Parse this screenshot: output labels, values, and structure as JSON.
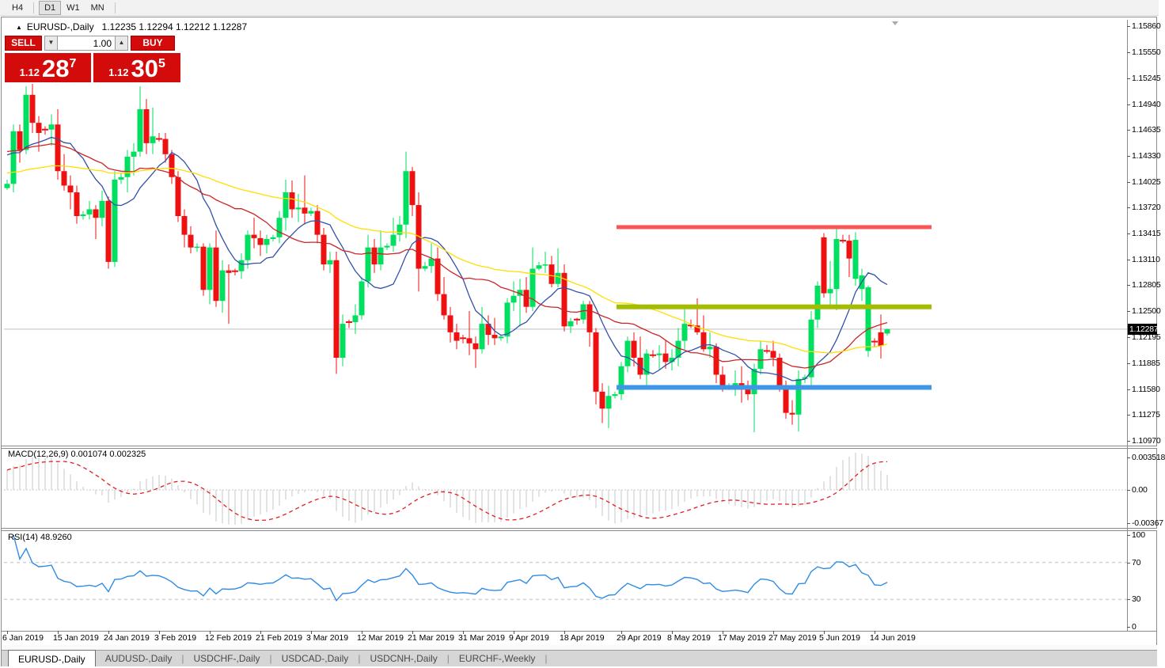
{
  "toolbar": {
    "timeframes": [
      {
        "label": "H4",
        "active": false
      },
      {
        "label": "D1",
        "active": true
      },
      {
        "label": "W1",
        "active": false
      },
      {
        "label": "MN",
        "active": false
      }
    ]
  },
  "chart_window": {
    "title_symbol": "EURUSD-,Daily",
    "title_ohlc": "1.12235 1.12294 1.12212 1.12287"
  },
  "trade_panel": {
    "sell_label": "SELL",
    "buy_label": "BUY",
    "volume": "1.00",
    "sell_price_small": "1.12",
    "sell_price_big": "28",
    "sell_price_sup": "7",
    "buy_price_small": "1.12",
    "buy_price_big": "30",
    "buy_price_sup": "5"
  },
  "chart_data": {
    "type": "candlestick",
    "symbol": "EURUSD-",
    "timeframe": "Daily",
    "price_axis": {
      "ticks": [
        "1.15860",
        "1.15550",
        "1.15245",
        "1.14940",
        "1.14635",
        "1.14330",
        "1.14025",
        "1.13720",
        "1.13415",
        "1.13110",
        "1.12805",
        "1.12500",
        "1.12195",
        "1.11885",
        "1.11580",
        "1.11275",
        "1.10970"
      ],
      "current_price": "1.12287"
    },
    "x_labels": [
      {
        "text": "6 Jan 2019",
        "index": 0
      },
      {
        "text": "15 Jan 2019",
        "index": 8
      },
      {
        "text": "24 Jan 2019",
        "index": 16
      },
      {
        "text": "3 Feb 2019",
        "index": 24
      },
      {
        "text": "12 Feb 2019",
        "index": 32
      },
      {
        "text": "21 Feb 2019",
        "index": 40
      },
      {
        "text": "3 Mar 2019",
        "index": 48
      },
      {
        "text": "12 Mar 2019",
        "index": 56
      },
      {
        "text": "21 Mar 2019",
        "index": 64
      },
      {
        "text": "31 Mar 2019",
        "index": 72
      },
      {
        "text": "9 Apr 2019",
        "index": 80
      },
      {
        "text": "18 Apr 2019",
        "index": 88
      },
      {
        "text": "29 Apr 2019",
        "index": 97
      },
      {
        "text": "8 May 2019",
        "index": 105
      },
      {
        "text": "17 May 2019",
        "index": 113
      },
      {
        "text": "27 May 2019",
        "index": 121
      },
      {
        "text": "5 Jun 2019",
        "index": 129
      },
      {
        "text": "14 Jun 2019",
        "index": 137
      }
    ],
    "candles": [
      [
        1.1395,
        1.1405,
        1.1393,
        1.14
      ],
      [
        1.14,
        1.147,
        1.139,
        1.1462
      ],
      [
        1.1462,
        1.147,
        1.1425,
        1.144
      ],
      [
        1.144,
        1.1515,
        1.1435,
        1.1505
      ],
      [
        1.1505,
        1.1518,
        1.146,
        1.1472
      ],
      [
        1.1472,
        1.148,
        1.1438,
        1.146
      ],
      [
        1.1462,
        1.1468,
        1.1458,
        1.1464,
        1
      ],
      [
        1.1464,
        1.1482,
        1.1445,
        1.147
      ],
      [
        1.147,
        1.1488,
        1.1405,
        1.1415
      ],
      [
        1.1415,
        1.1435,
        1.1392,
        1.1398
      ],
      [
        1.1398,
        1.141,
        1.137,
        1.139
      ],
      [
        1.139,
        1.1398,
        1.1353,
        1.1362
      ],
      [
        1.1362,
        1.1368,
        1.1358,
        1.1364
      ],
      [
        1.1364,
        1.138,
        1.1358,
        1.137
      ],
      [
        1.137,
        1.1375,
        1.1335,
        1.136
      ],
      [
        1.136,
        1.1392,
        1.135,
        1.138
      ],
      [
        1.138,
        1.1385,
        1.13,
        1.1308
      ],
      [
        1.1308,
        1.1415,
        1.1302,
        1.1405
      ],
      [
        1.1405,
        1.1412,
        1.14,
        1.1408
      ],
      [
        1.1408,
        1.144,
        1.139,
        1.1432
      ],
      [
        1.1432,
        1.1448,
        1.141,
        1.1438
      ],
      [
        1.1438,
        1.1515,
        1.1432,
        1.1488
      ],
      [
        1.1488,
        1.15,
        1.1435,
        1.1448
      ],
      [
        1.1448,
        1.149,
        1.1435,
        1.1456
      ],
      [
        1.1456,
        1.146,
        1.145,
        1.1453,
        1
      ],
      [
        1.1453,
        1.146,
        1.1425,
        1.1435
      ],
      [
        1.1435,
        1.144,
        1.14,
        1.1408
      ],
      [
        1.1408,
        1.1415,
        1.1355,
        1.1362
      ],
      [
        1.1362,
        1.137,
        1.1325,
        1.134
      ],
      [
        1.134,
        1.135,
        1.1318,
        1.1325
      ],
      [
        1.1325,
        1.133,
        1.132,
        1.1326
      ],
      [
        1.1326,
        1.133,
        1.1268,
        1.1275
      ],
      [
        1.1275,
        1.133,
        1.1258,
        1.1325
      ],
      [
        1.1325,
        1.1345,
        1.1255,
        1.1262
      ],
      [
        1.1262,
        1.131,
        1.1248,
        1.1298
      ],
      [
        1.1298,
        1.1305,
        1.1235,
        1.1295
      ],
      [
        1.1295,
        1.13,
        1.1292,
        1.1297,
        1
      ],
      [
        1.1297,
        1.1318,
        1.1288,
        1.131
      ],
      [
        1.131,
        1.1345,
        1.13,
        1.134
      ],
      [
        1.134,
        1.136,
        1.1324,
        1.1336
      ],
      [
        1.1336,
        1.1345,
        1.1315,
        1.1328
      ],
      [
        1.1328,
        1.134,
        1.1318,
        1.1335
      ],
      [
        1.1335,
        1.134,
        1.1332,
        1.1337
      ],
      [
        1.1337,
        1.1368,
        1.133,
        1.136
      ],
      [
        1.136,
        1.1405,
        1.1345,
        1.139
      ],
      [
        1.139,
        1.1404,
        1.136,
        1.137
      ],
      [
        1.137,
        1.1388,
        1.1355,
        1.1372
      ],
      [
        1.1372,
        1.141,
        1.1352,
        1.1365
      ],
      [
        1.1365,
        1.1372,
        1.1362,
        1.1368
      ],
      [
        1.1368,
        1.1375,
        1.133,
        1.134
      ],
      [
        1.134,
        1.1348,
        1.1298,
        1.1305
      ],
      [
        1.1305,
        1.132,
        1.1295,
        1.131
      ],
      [
        1.131,
        1.132,
        1.1176,
        1.1195
      ],
      [
        1.1195,
        1.1246,
        1.1185,
        1.1235
      ],
      [
        1.1235,
        1.124,
        1.123,
        1.1237,
        1
      ],
      [
        1.1237,
        1.1258,
        1.1223,
        1.1245
      ],
      [
        1.1245,
        1.129,
        1.124,
        1.1285
      ],
      [
        1.1285,
        1.134,
        1.1278,
        1.1325
      ],
      [
        1.1325,
        1.1335,
        1.1295,
        1.1305
      ],
      [
        1.1305,
        1.1345,
        1.1298,
        1.1325
      ],
      [
        1.1325,
        1.133,
        1.1322,
        1.1327
      ],
      [
        1.1327,
        1.136,
        1.132,
        1.134
      ],
      [
        1.134,
        1.1362,
        1.1332,
        1.1352
      ],
      [
        1.1352,
        1.1438,
        1.1336,
        1.1415
      ],
      [
        1.1415,
        1.142,
        1.1362,
        1.1375
      ],
      [
        1.1375,
        1.139,
        1.1273,
        1.13
      ],
      [
        1.13,
        1.1308,
        1.1297,
        1.1303
      ],
      [
        1.1303,
        1.133,
        1.1295,
        1.1312
      ],
      [
        1.1312,
        1.1325,
        1.1262,
        1.127
      ],
      [
        1.127,
        1.129,
        1.124,
        1.1245
      ],
      [
        1.1245,
        1.1255,
        1.1213,
        1.1225
      ],
      [
        1.1225,
        1.1235,
        1.1205,
        1.1215
      ],
      [
        1.1215,
        1.1222,
        1.1212,
        1.1218,
        1
      ],
      [
        1.1218,
        1.125,
        1.1198,
        1.1212
      ],
      [
        1.1212,
        1.122,
        1.1183,
        1.1205
      ],
      [
        1.1205,
        1.1255,
        1.12,
        1.1235
      ],
      [
        1.1235,
        1.1245,
        1.121,
        1.1222
      ],
      [
        1.1222,
        1.1242,
        1.121,
        1.1218
      ],
      [
        1.1218,
        1.1222,
        1.1215,
        1.122
      ],
      [
        1.122,
        1.1265,
        1.1212,
        1.126
      ],
      [
        1.126,
        1.1285,
        1.125,
        1.1268
      ],
      [
        1.1268,
        1.1288,
        1.1232,
        1.1275
      ],
      [
        1.1275,
        1.129,
        1.1248,
        1.1255
      ],
      [
        1.1255,
        1.1325,
        1.125,
        1.13
      ],
      [
        1.13,
        1.1308,
        1.1298,
        1.1304
      ],
      [
        1.1304,
        1.132,
        1.1295,
        1.1305
      ],
      [
        1.1305,
        1.1315,
        1.1278,
        1.1282
      ],
      [
        1.1282,
        1.1324,
        1.1278,
        1.1295
      ],
      [
        1.1295,
        1.1305,
        1.1226,
        1.1232
      ],
      [
        1.1232,
        1.1242,
        1.1224,
        1.1238
      ],
      [
        1.1238,
        1.1242,
        1.1234,
        1.124,
        1
      ],
      [
        1.124,
        1.1262,
        1.1235,
        1.1258
      ],
      [
        1.1258,
        1.1262,
        1.1208,
        1.1225
      ],
      [
        1.1225,
        1.123,
        1.114,
        1.1155
      ],
      [
        1.1155,
        1.1165,
        1.1118,
        1.1135
      ],
      [
        1.1135,
        1.1162,
        1.1112,
        1.115
      ],
      [
        1.115,
        1.1155,
        1.1147,
        1.1152
      ],
      [
        1.1152,
        1.119,
        1.1145,
        1.1185
      ],
      [
        1.1185,
        1.122,
        1.1178,
        1.1215
      ],
      [
        1.1215,
        1.1225,
        1.1185,
        1.1195
      ],
      [
        1.1195,
        1.122,
        1.117,
        1.1175
      ],
      [
        1.1175,
        1.1205,
        1.1162,
        1.12
      ],
      [
        1.12,
        1.1204,
        1.1195,
        1.1198,
        1
      ],
      [
        1.1198,
        1.121,
        1.118,
        1.12
      ],
      [
        1.12,
        1.1215,
        1.1182,
        1.119
      ],
      [
        1.119,
        1.1205,
        1.118,
        1.1195
      ],
      [
        1.1195,
        1.123,
        1.1185,
        1.1215
      ],
      [
        1.1215,
        1.1255,
        1.1205,
        1.1235
      ],
      [
        1.1235,
        1.124,
        1.123,
        1.1233,
        1
      ],
      [
        1.1233,
        1.1265,
        1.1222,
        1.1225
      ],
      [
        1.1225,
        1.1245,
        1.1202,
        1.1205
      ],
      [
        1.1205,
        1.1225,
        1.1195,
        1.1208
      ],
      [
        1.1208,
        1.1212,
        1.1165,
        1.1175
      ],
      [
        1.1175,
        1.1185,
        1.1155,
        1.116
      ],
      [
        1.116,
        1.1165,
        1.1157,
        1.1162
      ],
      [
        1.1162,
        1.118,
        1.115,
        1.1165
      ],
      [
        1.1165,
        1.1185,
        1.1142,
        1.116
      ],
      [
        1.116,
        1.1168,
        1.1145,
        1.1152
      ],
      [
        1.1152,
        1.1188,
        1.1107,
        1.1182
      ],
      [
        1.1182,
        1.1215,
        1.1175,
        1.1205
      ],
      [
        1.1205,
        1.121,
        1.12,
        1.1203,
        1
      ],
      [
        1.1203,
        1.1215,
        1.1185,
        1.1195
      ],
      [
        1.1195,
        1.12,
        1.1155,
        1.116
      ],
      [
        1.116,
        1.1168,
        1.1123,
        1.113
      ],
      [
        1.113,
        1.1145,
        1.1116,
        1.1128
      ],
      [
        1.1128,
        1.118,
        1.1108,
        1.117
      ],
      [
        1.117,
        1.1175,
        1.1165,
        1.1172
      ],
      [
        1.1172,
        1.125,
        1.116,
        1.124
      ],
      [
        1.124,
        1.1285,
        1.123,
        1.128
      ],
      [
        1.1337,
        1.1342,
        1.1266,
        1.1271
      ],
      [
        1.1271,
        1.1309,
        1.1255,
        1.1276
      ],
      [
        1.1276,
        1.1348,
        1.1251,
        1.1335
      ],
      [
        1.1335,
        1.134,
        1.133,
        1.1333,
        1
      ],
      [
        1.1333,
        1.134,
        1.129,
        1.1312
      ],
      [
        1.1288,
        1.1343,
        1.128,
        1.1334
      ],
      [
        1.1276,
        1.13,
        1.1262,
        1.1292
      ],
      [
        1.1203,
        1.128,
        1.1196,
        1.1278
      ],
      [
        1.1213,
        1.1218,
        1.1208,
        1.1214,
        1
      ],
      [
        1.1225,
        1.1246,
        1.1194,
        1.1209
      ],
      [
        1.12235,
        1.12294,
        1.12212,
        1.12287
      ]
    ],
    "moving_averages": [
      {
        "name": "ma-fast-blue",
        "period": 10,
        "color": "#3350A8",
        "seed_offset": 0.0038
      },
      {
        "name": "ma-mid-red",
        "period": 21,
        "color": "#CC2525",
        "seed_offset": 0.004
      },
      {
        "name": "ma-slow-yellow",
        "period": 45,
        "color": "#FFDE00",
        "seed_offset": 0.0013
      }
    ],
    "hlines": [
      {
        "name": "resistance-line",
        "price": 1.1349,
        "color": "#F95555",
        "from_index": 97,
        "to_index": 146,
        "thickness": 5
      },
      {
        "name": "mid-resistance-line",
        "price": 1.1255,
        "color": "#A3BC00",
        "from_index": 97,
        "to_index": 146,
        "thickness": 6
      },
      {
        "name": "support-line",
        "price": 1.116,
        "color": "#3E96E6",
        "from_index": 97,
        "to_index": 146,
        "thickness": 6
      }
    ],
    "colors": {
      "bull": "#00DF60",
      "bear": "#EE1111",
      "price_line": "#BFBFBF",
      "price_tag_bg": "#000000",
      "price_tag_text": "#FFFFFF"
    },
    "macd": {
      "label": "MACD(12,26,9)",
      "values": "0.001074 0.002325",
      "fast": 12,
      "slow": 26,
      "signal": 9,
      "axis_ticks": [
        "0.003518",
        "0.00",
        "-0.00367"
      ],
      "histogram_color": "#C4C4C4",
      "signal_color": "#E02020"
    },
    "rsi": {
      "label": "RSI(14)",
      "value": "48.9260",
      "period": 14,
      "axis_ticks": [
        "100",
        "70",
        "30",
        "0"
      ],
      "levels": [
        70,
        30
      ],
      "line_color": "#2E8BE6"
    }
  },
  "tabs": [
    {
      "label": "EURUSD-,Daily",
      "active": true
    },
    {
      "label": "AUDUSD-,Daily",
      "active": false
    },
    {
      "label": "USDCHF-,Daily",
      "active": false
    },
    {
      "label": "USDCAD-,Daily",
      "active": false
    },
    {
      "label": "USDCNH-,Daily",
      "active": false
    },
    {
      "label": "EURCHF-,Weekly",
      "active": false
    }
  ]
}
